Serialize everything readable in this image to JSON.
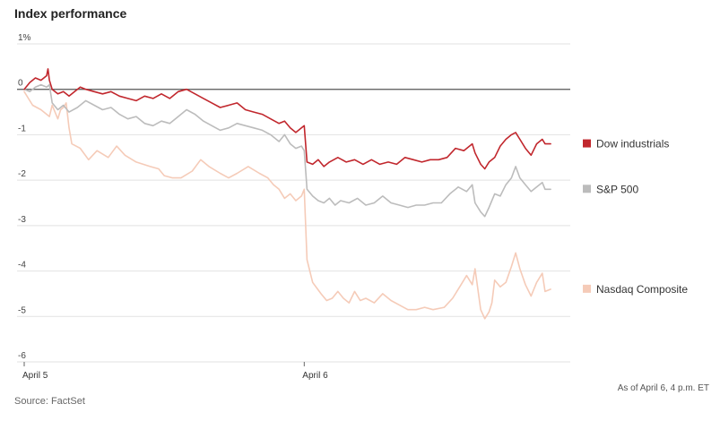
{
  "chart_data": {
    "type": "line",
    "title": "Index performance",
    "y_ticks": [
      {
        "value": 1,
        "label": "1%"
      },
      {
        "value": 0,
        "label": "0"
      },
      {
        "value": -1,
        "label": "-1"
      },
      {
        "value": -2,
        "label": "-2"
      },
      {
        "value": -3,
        "label": "-3"
      },
      {
        "value": -4,
        "label": "-4"
      },
      {
        "value": -5,
        "label": "-5"
      },
      {
        "value": -6,
        "label": "-6"
      }
    ],
    "ylim": [
      -6,
      1
    ],
    "x_ticks": [
      {
        "value": 0,
        "label": "April 5"
      },
      {
        "value": 1,
        "label": "April 6"
      }
    ],
    "xlim": [
      0,
      1.95
    ],
    "grid": true,
    "legend": "right",
    "series": [
      {
        "name": "Nasdaq Composite",
        "color": "#f5cbb8",
        "points": [
          [
            0,
            -0.05
          ],
          [
            0.03,
            -0.35
          ],
          [
            0.06,
            -0.45
          ],
          [
            0.09,
            -0.6
          ],
          [
            0.1,
            -0.35
          ],
          [
            0.12,
            -0.65
          ],
          [
            0.13,
            -0.45
          ],
          [
            0.14,
            -0.4
          ],
          [
            0.15,
            -0.3
          ],
          [
            0.16,
            -0.85
          ],
          [
            0.17,
            -1.2
          ],
          [
            0.2,
            -1.3
          ],
          [
            0.23,
            -1.55
          ],
          [
            0.26,
            -1.35
          ],
          [
            0.3,
            -1.5
          ],
          [
            0.33,
            -1.25
          ],
          [
            0.36,
            -1.45
          ],
          [
            0.4,
            -1.6
          ],
          [
            0.45,
            -1.7
          ],
          [
            0.48,
            -1.75
          ],
          [
            0.5,
            -1.9
          ],
          [
            0.53,
            -1.95
          ],
          [
            0.56,
            -1.95
          ],
          [
            0.6,
            -1.8
          ],
          [
            0.63,
            -1.55
          ],
          [
            0.66,
            -1.7
          ],
          [
            0.7,
            -1.85
          ],
          [
            0.73,
            -1.95
          ],
          [
            0.76,
            -1.85
          ],
          [
            0.8,
            -1.7
          ],
          [
            0.84,
            -1.85
          ],
          [
            0.87,
            -1.95
          ],
          [
            0.89,
            -2.1
          ],
          [
            0.91,
            -2.2
          ],
          [
            0.93,
            -2.4
          ],
          [
            0.95,
            -2.3
          ],
          [
            0.97,
            -2.45
          ],
          [
            0.99,
            -2.35
          ],
          [
            1.0,
            -2.2
          ],
          [
            1.01,
            -3.75
          ],
          [
            1.03,
            -4.25
          ],
          [
            1.06,
            -4.5
          ],
          [
            1.08,
            -4.65
          ],
          [
            1.1,
            -4.6
          ],
          [
            1.12,
            -4.45
          ],
          [
            1.14,
            -4.6
          ],
          [
            1.16,
            -4.7
          ],
          [
            1.18,
            -4.45
          ],
          [
            1.2,
            -4.65
          ],
          [
            1.22,
            -4.6
          ],
          [
            1.25,
            -4.7
          ],
          [
            1.28,
            -4.5
          ],
          [
            1.31,
            -4.65
          ],
          [
            1.34,
            -4.75
          ],
          [
            1.37,
            -4.85
          ],
          [
            1.4,
            -4.85
          ],
          [
            1.43,
            -4.8
          ],
          [
            1.46,
            -4.85
          ],
          [
            1.5,
            -4.8
          ],
          [
            1.53,
            -4.6
          ],
          [
            1.56,
            -4.3
          ],
          [
            1.58,
            -4.1
          ],
          [
            1.6,
            -4.3
          ],
          [
            1.61,
            -3.95
          ],
          [
            1.63,
            -4.85
          ],
          [
            1.645,
            -5.05
          ],
          [
            1.66,
            -4.9
          ],
          [
            1.67,
            -4.7
          ],
          [
            1.68,
            -4.2
          ],
          [
            1.7,
            -4.35
          ],
          [
            1.72,
            -4.25
          ],
          [
            1.74,
            -3.9
          ],
          [
            1.755,
            -3.6
          ],
          [
            1.77,
            -3.95
          ],
          [
            1.79,
            -4.3
          ],
          [
            1.81,
            -4.55
          ],
          [
            1.83,
            -4.25
          ],
          [
            1.85,
            -4.05
          ],
          [
            1.86,
            -4.45
          ],
          [
            1.88,
            -4.4
          ]
        ]
      },
      {
        "name": "S&P 500",
        "color": "#bcbcbc",
        "points": [
          [
            0,
            0.0
          ],
          [
            0.02,
            -0.05
          ],
          [
            0.04,
            0.05
          ],
          [
            0.06,
            0.1
          ],
          [
            0.08,
            0.05
          ],
          [
            0.09,
            0.1
          ],
          [
            0.1,
            -0.3
          ],
          [
            0.12,
            -0.45
          ],
          [
            0.14,
            -0.35
          ],
          [
            0.16,
            -0.5
          ],
          [
            0.19,
            -0.4
          ],
          [
            0.22,
            -0.25
          ],
          [
            0.25,
            -0.35
          ],
          [
            0.28,
            -0.45
          ],
          [
            0.31,
            -0.4
          ],
          [
            0.34,
            -0.55
          ],
          [
            0.37,
            -0.65
          ],
          [
            0.4,
            -0.6
          ],
          [
            0.43,
            -0.75
          ],
          [
            0.46,
            -0.8
          ],
          [
            0.49,
            -0.7
          ],
          [
            0.52,
            -0.75
          ],
          [
            0.55,
            -0.6
          ],
          [
            0.58,
            -0.45
          ],
          [
            0.61,
            -0.55
          ],
          [
            0.64,
            -0.7
          ],
          [
            0.67,
            -0.8
          ],
          [
            0.7,
            -0.9
          ],
          [
            0.73,
            -0.85
          ],
          [
            0.76,
            -0.75
          ],
          [
            0.79,
            -0.8
          ],
          [
            0.82,
            -0.85
          ],
          [
            0.85,
            -0.9
          ],
          [
            0.88,
            -1.0
          ],
          [
            0.91,
            -1.15
          ],
          [
            0.93,
            -1.0
          ],
          [
            0.95,
            -1.2
          ],
          [
            0.97,
            -1.3
          ],
          [
            0.99,
            -1.25
          ],
          [
            1.0,
            -1.35
          ],
          [
            1.01,
            -2.2
          ],
          [
            1.03,
            -2.35
          ],
          [
            1.05,
            -2.45
          ],
          [
            1.07,
            -2.5
          ],
          [
            1.09,
            -2.4
          ],
          [
            1.11,
            -2.55
          ],
          [
            1.13,
            -2.45
          ],
          [
            1.16,
            -2.5
          ],
          [
            1.19,
            -2.4
          ],
          [
            1.22,
            -2.55
          ],
          [
            1.25,
            -2.5
          ],
          [
            1.28,
            -2.35
          ],
          [
            1.31,
            -2.5
          ],
          [
            1.34,
            -2.55
          ],
          [
            1.37,
            -2.6
          ],
          [
            1.4,
            -2.55
          ],
          [
            1.43,
            -2.55
          ],
          [
            1.46,
            -2.5
          ],
          [
            1.49,
            -2.5
          ],
          [
            1.52,
            -2.3
          ],
          [
            1.55,
            -2.15
          ],
          [
            1.58,
            -2.25
          ],
          [
            1.6,
            -2.1
          ],
          [
            1.61,
            -2.5
          ],
          [
            1.63,
            -2.7
          ],
          [
            1.645,
            -2.8
          ],
          [
            1.66,
            -2.6
          ],
          [
            1.68,
            -2.3
          ],
          [
            1.7,
            -2.35
          ],
          [
            1.72,
            -2.1
          ],
          [
            1.74,
            -1.95
          ],
          [
            1.755,
            -1.7
          ],
          [
            1.77,
            -1.95
          ],
          [
            1.79,
            -2.1
          ],
          [
            1.81,
            -2.25
          ],
          [
            1.83,
            -2.15
          ],
          [
            1.85,
            -2.05
          ],
          [
            1.86,
            -2.2
          ],
          [
            1.88,
            -2.2
          ]
        ]
      },
      {
        "name": "Dow industrials",
        "color": "#c1272d",
        "points": [
          [
            0,
            0.0
          ],
          [
            0.02,
            0.15
          ],
          [
            0.04,
            0.25
          ],
          [
            0.06,
            0.2
          ],
          [
            0.08,
            0.3
          ],
          [
            0.085,
            0.45
          ],
          [
            0.09,
            0.2
          ],
          [
            0.1,
            0.0
          ],
          [
            0.12,
            -0.1
          ],
          [
            0.14,
            -0.05
          ],
          [
            0.16,
            -0.15
          ],
          [
            0.18,
            -0.05
          ],
          [
            0.2,
            0.05
          ],
          [
            0.22,
            0.0
          ],
          [
            0.25,
            -0.05
          ],
          [
            0.28,
            -0.1
          ],
          [
            0.31,
            -0.05
          ],
          [
            0.34,
            -0.15
          ],
          [
            0.37,
            -0.2
          ],
          [
            0.4,
            -0.25
          ],
          [
            0.43,
            -0.15
          ],
          [
            0.46,
            -0.2
          ],
          [
            0.49,
            -0.1
          ],
          [
            0.52,
            -0.2
          ],
          [
            0.55,
            -0.05
          ],
          [
            0.58,
            0.0
          ],
          [
            0.61,
            -0.1
          ],
          [
            0.64,
            -0.2
          ],
          [
            0.67,
            -0.3
          ],
          [
            0.7,
            -0.4
          ],
          [
            0.73,
            -0.35
          ],
          [
            0.76,
            -0.3
          ],
          [
            0.79,
            -0.45
          ],
          [
            0.82,
            -0.5
          ],
          [
            0.85,
            -0.55
          ],
          [
            0.88,
            -0.65
          ],
          [
            0.91,
            -0.75
          ],
          [
            0.93,
            -0.7
          ],
          [
            0.95,
            -0.85
          ],
          [
            0.97,
            -0.95
          ],
          [
            0.99,
            -0.85
          ],
          [
            1.0,
            -0.8
          ],
          [
            1.01,
            -1.6
          ],
          [
            1.03,
            -1.65
          ],
          [
            1.05,
            -1.55
          ],
          [
            1.07,
            -1.7
          ],
          [
            1.09,
            -1.6
          ],
          [
            1.12,
            -1.5
          ],
          [
            1.15,
            -1.6
          ],
          [
            1.18,
            -1.55
          ],
          [
            1.21,
            -1.65
          ],
          [
            1.24,
            -1.55
          ],
          [
            1.27,
            -1.65
          ],
          [
            1.3,
            -1.6
          ],
          [
            1.33,
            -1.65
          ],
          [
            1.36,
            -1.5
          ],
          [
            1.39,
            -1.55
          ],
          [
            1.42,
            -1.6
          ],
          [
            1.45,
            -1.55
          ],
          [
            1.48,
            -1.55
          ],
          [
            1.51,
            -1.5
          ],
          [
            1.54,
            -1.3
          ],
          [
            1.57,
            -1.35
          ],
          [
            1.6,
            -1.2
          ],
          [
            1.61,
            -1.4
          ],
          [
            1.63,
            -1.65
          ],
          [
            1.645,
            -1.75
          ],
          [
            1.66,
            -1.6
          ],
          [
            1.68,
            -1.5
          ],
          [
            1.7,
            -1.25
          ],
          [
            1.72,
            -1.1
          ],
          [
            1.74,
            -1.0
          ],
          [
            1.755,
            -0.95
          ],
          [
            1.77,
            -1.1
          ],
          [
            1.79,
            -1.3
          ],
          [
            1.81,
            -1.45
          ],
          [
            1.83,
            -1.2
          ],
          [
            1.85,
            -1.1
          ],
          [
            1.86,
            -1.2
          ],
          [
            1.88,
            -1.2
          ]
        ]
      }
    ]
  },
  "source": "Source: FactSet",
  "as_of": "As of April 6, 4 p.m. ET"
}
